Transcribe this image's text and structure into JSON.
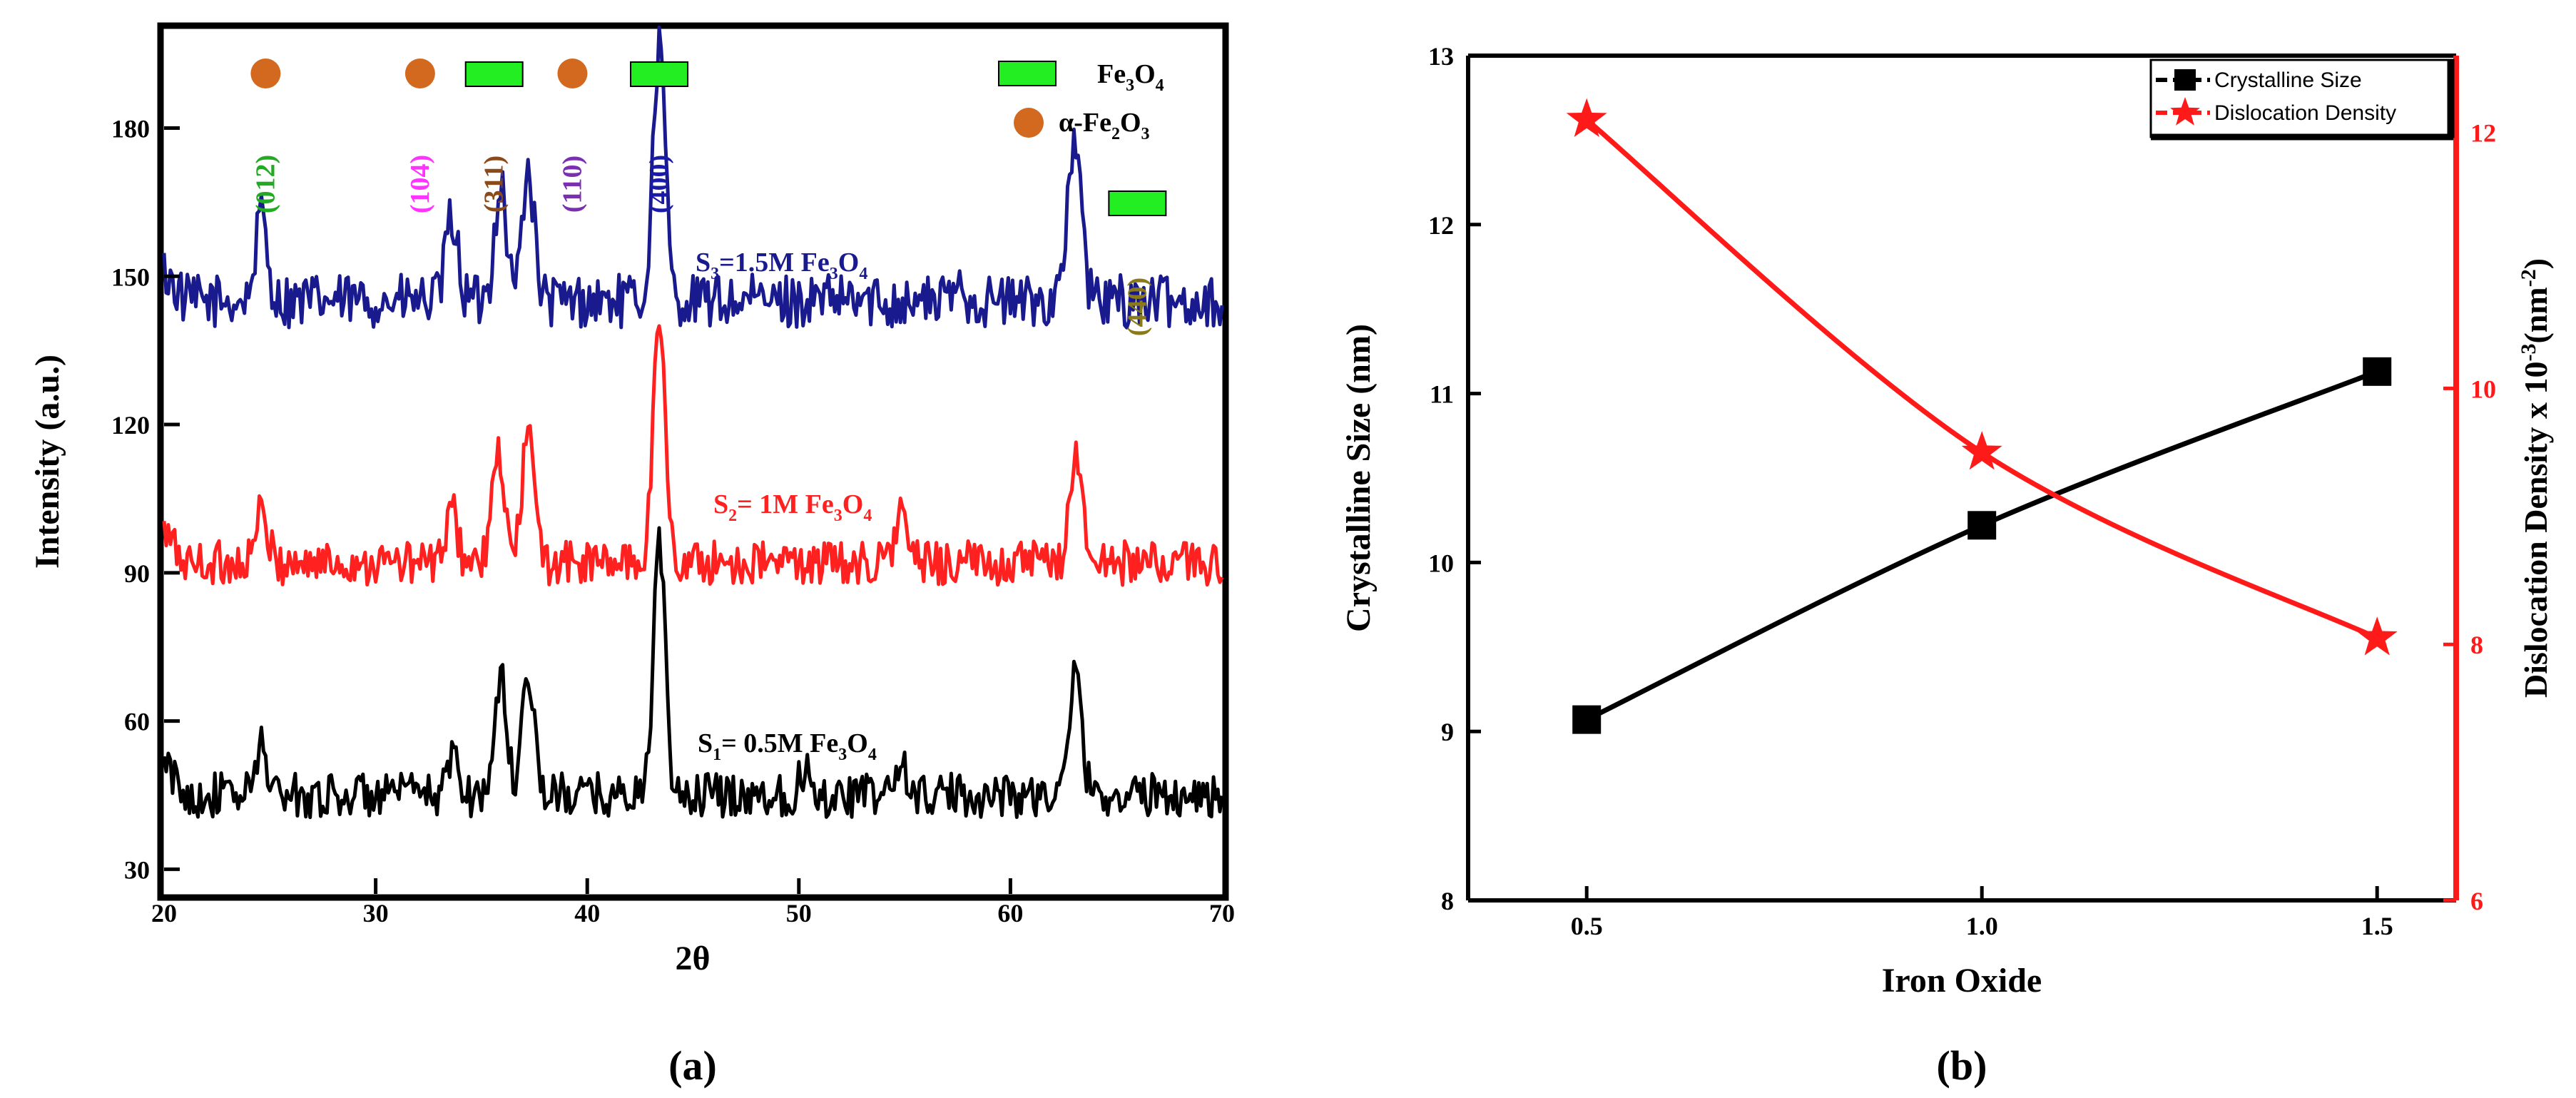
{
  "chart_data": [
    {
      "panel": "(a)",
      "type": "line",
      "title": "",
      "xlabel": "2θ",
      "ylabel": "Intensity (a.u.)",
      "xlim": [
        20,
        70
      ],
      "ylim": [
        25,
        200
      ],
      "xticks": [
        "20",
        "30",
        "40",
        "50",
        "60",
        "70"
      ],
      "yticks": [
        "30",
        "60",
        "90",
        "120",
        "150",
        "180"
      ],
      "series": [
        {
          "name": "S3=1.5M Fe3O4",
          "label_parts": [
            "S",
            "3",
            "=1.5M Fe",
            "3",
            "O",
            "4"
          ],
          "color": "#1a1a8f",
          "baseline": 145,
          "noise": 6,
          "peaks": [
            [
              24.6,
              17
            ],
            [
              33.6,
              17
            ],
            [
              35.9,
              24
            ],
            [
              37.2,
              27
            ],
            [
              43.4,
              52
            ],
            [
              57.6,
              3
            ],
            [
              62.6,
              8
            ],
            [
              63.1,
              30
            ]
          ]
        },
        {
          "name": "S2= 1M Fe3O4",
          "label_parts": [
            "S",
            "2",
            "= 1M Fe",
            "3",
            "O",
            "4"
          ],
          "color": "#ff2020",
          "baseline": 92,
          "noise": 5,
          "peaks": [
            [
              24.6,
              10
            ],
            [
              33.6,
              10
            ],
            [
              35.8,
              22
            ],
            [
              37.2,
              27
            ],
            [
              43.4,
              50
            ],
            [
              54.8,
              10
            ],
            [
              63.1,
              23
            ]
          ]
        },
        {
          "name": "S1= 0.5M Fe3O4",
          "label_parts": [
            "S",
            "1",
            "= 0.5M Fe",
            "3",
            "O",
            "4"
          ],
          "color": "#000000",
          "baseline": 45,
          "noise": 5,
          "peaks": [
            [
              24.6,
              10
            ],
            [
              33.7,
              8
            ],
            [
              35.9,
              24
            ],
            [
              37.2,
              26
            ],
            [
              43.4,
              50
            ],
            [
              50.3,
              5
            ],
            [
              54.8,
              6
            ],
            [
              63.1,
              25
            ]
          ]
        }
      ],
      "reflections": [
        {
          "hkl": "(012)",
          "phase": "α-Fe2O3",
          "two_theta": 24.8,
          "label_color": "#22aa22"
        },
        {
          "hkl": "(104)",
          "phase": "α-Fe2O3",
          "two_theta": 32.1,
          "label_color": "#ff33ff"
        },
        {
          "hkl": "(311)",
          "phase": "Fe3O4",
          "two_theta": 35.6,
          "label_color": "#8b4a1a"
        },
        {
          "hkl": "(110)",
          "phase": "α-Fe2O3",
          "two_theta": 39.3,
          "label_color": "#7a2fb0"
        },
        {
          "hkl": "(400)",
          "phase": "Fe3O4",
          "two_theta": 43.4,
          "label_color": "#1a1aa8"
        },
        {
          "hkl": "(440)",
          "phase": "Fe3O4",
          "two_theta": 66.0,
          "label_color": "#8a7a1a"
        }
      ],
      "legend": {
        "position": "top-right",
        "items": [
          {
            "marker": "green-rect",
            "parts": [
              "Fe",
              "3",
              "O",
              "4"
            ]
          },
          {
            "marker": "orange-circle",
            "parts": [
              "α-Fe",
              "2",
              "O",
              "3"
            ]
          }
        ]
      },
      "marker_colors": {
        "fe3o4": "#22ee22",
        "fe2o3": "#d2691e"
      }
    },
    {
      "panel": "(b)",
      "type": "line",
      "title": "",
      "xlabel": "Iron Oxide",
      "ylabel": "Crystalline Size (nm)",
      "y2label": "Dislocation Density x 10^-3 (nm^-2)",
      "y2label_parts": [
        "Dislocation Density x 10",
        "-3",
        "(nm",
        "-2",
        ")"
      ],
      "x": [
        0.5,
        1.0,
        1.5
      ],
      "xlim": [
        0.35,
        1.6
      ],
      "xticks": [
        "0.5",
        "1.0",
        "1.5"
      ],
      "ylim": [
        8,
        13
      ],
      "yticks": [
        "8",
        "9",
        "10",
        "11",
        "12",
        "13"
      ],
      "y2lim": [
        6,
        12.6
      ],
      "y2ticks": [
        "6",
        "8",
        "10",
        "12"
      ],
      "series": [
        {
          "name": "Crystalline Size",
          "axis": "left",
          "values": [
            9.07,
            10.22,
            11.13
          ],
          "color": "#000000",
          "marker": "square"
        },
        {
          "name": "Dislocation Density",
          "axis": "right",
          "values": [
            12.1,
            9.5,
            8.05
          ],
          "color": "#ff1a1a",
          "marker": "star"
        }
      ],
      "legend": {
        "position": "top-right"
      }
    }
  ]
}
